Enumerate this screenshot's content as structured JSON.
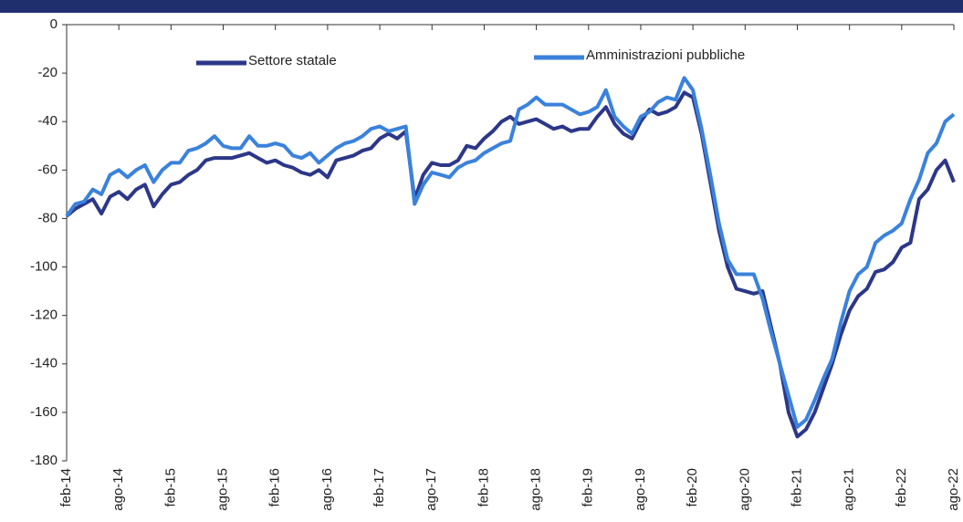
{
  "chart_data": {
    "type": "line",
    "categories": [
      "feb-14",
      null,
      null,
      null,
      null,
      null,
      "ago-14",
      null,
      null,
      null,
      null,
      null,
      "feb-15",
      null,
      null,
      null,
      null,
      null,
      "ago-15",
      null,
      null,
      null,
      null,
      null,
      "feb-16",
      null,
      null,
      null,
      null,
      null,
      "ago-16",
      null,
      null,
      null,
      null,
      null,
      "feb-17",
      null,
      null,
      null,
      null,
      null,
      "ago-17",
      null,
      null,
      null,
      null,
      null,
      "feb-18",
      null,
      null,
      null,
      null,
      null,
      "ago-18",
      null,
      null,
      null,
      null,
      null,
      "feb-19",
      null,
      null,
      null,
      null,
      null,
      "ago-19",
      null,
      null,
      null,
      null,
      null,
      "feb-20",
      null,
      null,
      null,
      null,
      null,
      "ago-20",
      null,
      null,
      null,
      null,
      null,
      "feb-21",
      null,
      null,
      null,
      null,
      null,
      "ago-21",
      null,
      null,
      null,
      null,
      null,
      "feb-22",
      null,
      null,
      null,
      null,
      null,
      "ago-22"
    ],
    "series": [
      {
        "name": "Settore statale",
        "color": "#2c3788",
        "values": [
          -79,
          -76,
          -74,
          -72,
          -78,
          -71,
          -69,
          -72,
          -68,
          -66,
          -75,
          -70,
          -66,
          -65,
          -62,
          -60,
          -56,
          -55,
          -55,
          -55,
          -54,
          -53,
          -55,
          -57,
          -56,
          -58,
          -59,
          -61,
          -62,
          -60,
          -63,
          -56,
          -55,
          -54,
          -52,
          -51,
          -47,
          -45,
          -47,
          -44,
          -72,
          -62,
          -57,
          -58,
          -58,
          -56,
          -50,
          -51,
          -47,
          -44,
          -40,
          -38,
          -41,
          -40,
          -39,
          -41,
          -43,
          -42,
          -44,
          -43,
          -43,
          -38,
          -34,
          -41,
          -45,
          -47,
          -40,
          -35,
          -37,
          -36,
          -34,
          -28,
          -30,
          -45,
          -65,
          -85,
          -100,
          -109,
          -110,
          -111,
          -110,
          -125,
          -140,
          -160,
          -170,
          -167,
          -160,
          -150,
          -140,
          -128,
          -118,
          -112,
          -109,
          -102,
          -101,
          -98,
          -92,
          -90,
          -72,
          -68,
          -60,
          -56,
          -65
        ]
      },
      {
        "name": "Amministrazioni pubbliche",
        "color": "#3a82dc",
        "values": [
          -79,
          -74,
          -73,
          -68,
          -70,
          -62,
          -60,
          -63,
          -60,
          -58,
          -65,
          -60,
          -57,
          -57,
          -52,
          -51,
          -49,
          -46,
          -50,
          -51,
          -51,
          -46,
          -50,
          -50,
          -49,
          -50,
          -54,
          -55,
          -53,
          -57,
          -54,
          -51,
          -49,
          -48,
          -46,
          -43,
          -42,
          -44,
          -43,
          -42,
          -74,
          -66,
          -61,
          -62,
          -63,
          -59,
          -57,
          -56,
          -53,
          -51,
          -49,
          -48,
          -35,
          -33,
          -30,
          -33,
          -33,
          -33,
          -35,
          -37,
          -36,
          -34,
          -27,
          -38,
          -42,
          -45,
          -38,
          -36,
          -32,
          -30,
          -31,
          -22,
          -27,
          -43,
          -62,
          -82,
          -97,
          -103,
          -103,
          -103,
          -113,
          -127,
          -140,
          -153,
          -166,
          -163,
          -155,
          -146,
          -138,
          -123,
          -110,
          -103,
          -100,
          -90,
          -87,
          -85,
          -82,
          -72,
          -64,
          -53,
          -49,
          -40,
          -37
        ]
      }
    ],
    "ylim": [
      -180,
      0
    ],
    "yticks": [
      0,
      -20,
      -40,
      -60,
      -80,
      -100,
      -120,
      -140,
      -160,
      -180
    ],
    "legend": "top"
  }
}
